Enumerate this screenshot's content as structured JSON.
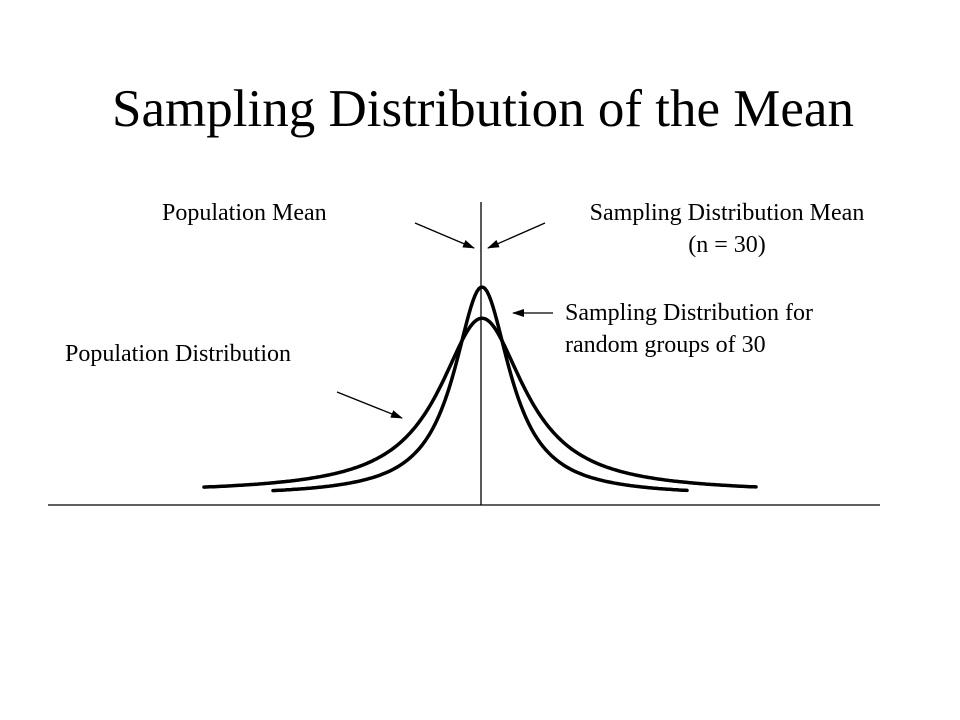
{
  "title": "Sampling Distribution of the Mean",
  "labels": {
    "population_mean": "Population Mean",
    "sampling_mean_line1": "Sampling Distribution Mean",
    "sampling_mean_line2": "(n = 30)",
    "sampling_dist_line1": "Sampling Distribution for",
    "sampling_dist_line2": "random groups of 30",
    "population_dist": "Population Distribution"
  },
  "colors": {
    "ink": "#000000",
    "background": "#ffffff"
  },
  "curves": {
    "population_distribution": {
      "shape": "bell",
      "relative_peak_height": 0.85
    },
    "sampling_distribution": {
      "shape": "bell",
      "relative_peak_height": 1.0
    }
  }
}
